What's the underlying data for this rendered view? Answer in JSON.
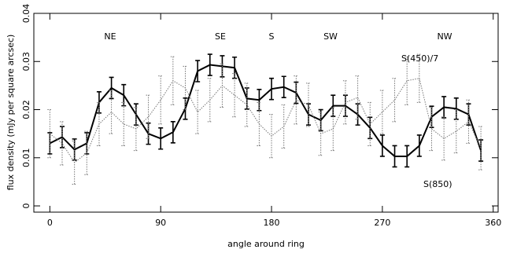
{
  "chart_data": {
    "type": "line",
    "xlabel": "angle around ring",
    "ylabel": "flux density (mJy per square arcsec)",
    "xlim": [
      -13,
      364
    ],
    "ylim": [
      -0.0013,
      0.04
    ],
    "xticks": [
      0,
      90,
      180,
      270,
      360
    ],
    "yticks": [
      0,
      0.01,
      0.02,
      0.03,
      0.04
    ],
    "x": [
      0,
      10,
      20,
      30,
      40,
      50,
      60,
      70,
      80,
      90,
      100,
      110,
      120,
      130,
      140,
      150,
      160,
      170,
      180,
      190,
      200,
      210,
      220,
      230,
      240,
      250,
      260,
      270,
      280,
      290,
      300,
      310,
      320,
      330,
      340,
      350
    ],
    "series": [
      {
        "name": "S(850)",
        "color": "#000000",
        "style": "solid",
        "values": [
          0.013,
          0.0143,
          0.0117,
          0.013,
          0.0215,
          0.0245,
          0.023,
          0.019,
          0.015,
          0.014,
          0.0153,
          0.0202,
          0.028,
          0.0293,
          0.029,
          0.0287,
          0.0223,
          0.022,
          0.0243,
          0.0247,
          0.0235,
          0.019,
          0.0178,
          0.0208,
          0.0208,
          0.019,
          0.0162,
          0.0125,
          0.0103,
          0.0103,
          0.0125,
          0.0185,
          0.0205,
          0.0202,
          0.019,
          0.0115
        ],
        "errors": [
          0.0022,
          0.0022,
          0.0022,
          0.0022,
          0.0022,
          0.0022,
          0.0022,
          0.0022,
          0.0022,
          0.0022,
          0.0022,
          0.0022,
          0.0022,
          0.0022,
          0.0022,
          0.0022,
          0.0022,
          0.0022,
          0.0022,
          0.0022,
          0.0022,
          0.0022,
          0.0022,
          0.0022,
          0.0022,
          0.0022,
          0.0022,
          0.0022,
          0.0022,
          0.0022,
          0.0022,
          0.0022,
          0.0022,
          0.0022,
          0.0022,
          0.0022
        ]
      },
      {
        "name": "S(450)/7",
        "color": "#777777",
        "style": "dotted",
        "values": [
          0.015,
          0.013,
          0.009,
          0.011,
          0.017,
          0.0195,
          0.017,
          0.016,
          0.0185,
          0.022,
          0.026,
          0.0245,
          0.0195,
          0.022,
          0.025,
          0.023,
          0.021,
          0.017,
          0.0145,
          0.0165,
          0.022,
          0.021,
          0.015,
          0.016,
          0.0215,
          0.0225,
          0.017,
          0.0195,
          0.022,
          0.026,
          0.0265,
          0.016,
          0.014,
          0.0155,
          0.0175,
          0.012
        ],
        "errors": [
          0.005,
          0.0045,
          0.0045,
          0.0045,
          0.0045,
          0.0045,
          0.0045,
          0.0045,
          0.0045,
          0.005,
          0.005,
          0.0045,
          0.0045,
          0.0045,
          0.0045,
          0.0045,
          0.0045,
          0.0045,
          0.0045,
          0.0045,
          0.005,
          0.0045,
          0.0045,
          0.0045,
          0.0045,
          0.0045,
          0.0045,
          0.0045,
          0.0045,
          0.005,
          0.005,
          0.0045,
          0.0045,
          0.0045,
          0.0045,
          0.0045
        ]
      }
    ],
    "annotations": [
      "NE",
      "SE",
      "S",
      "SW",
      "NW"
    ]
  }
}
